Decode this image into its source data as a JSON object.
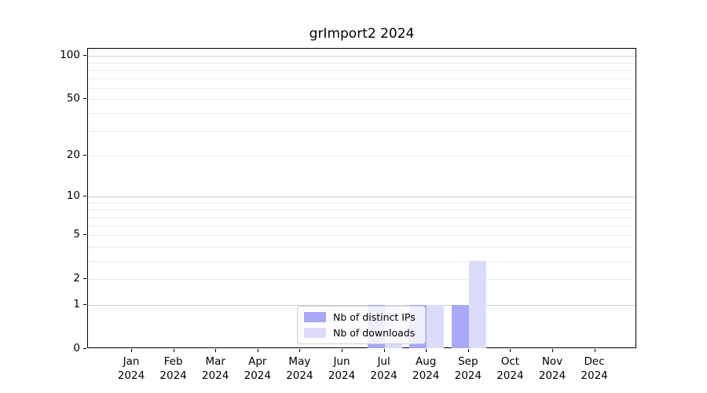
{
  "chart_data": {
    "type": "bar",
    "title": "grImport2 2024",
    "categories": [
      "Jan",
      "Feb",
      "Mar",
      "Apr",
      "May",
      "Jun",
      "Jul",
      "Aug",
      "Sep",
      "Oct",
      "Nov",
      "Dec"
    ],
    "year_label": "2024",
    "series": [
      {
        "name": "Nb of distinct IPs",
        "color": "#a8a8f6",
        "values": [
          0,
          0,
          0,
          0,
          0,
          0,
          1,
          1,
          1,
          0,
          0,
          0
        ]
      },
      {
        "name": "Nb of downloads",
        "color": "#dcdcfa",
        "values": [
          0,
          0,
          0,
          0,
          0,
          0,
          1,
          1,
          3,
          0,
          0,
          0
        ]
      }
    ],
    "y_axis": {
      "scale": "log1p",
      "ticks": [
        0,
        1,
        2,
        5,
        10,
        20,
        50,
        100
      ],
      "range": [
        0,
        112
      ]
    },
    "x_axis": {
      "tick_label_lines": 2
    },
    "legend_position": "inside-bottom-center",
    "grid": "horizontal",
    "colors": {
      "major_grid": "#cfcfcf",
      "minor_grid": "#ececec",
      "axis": "#000000",
      "background": "#ffffff"
    }
  }
}
